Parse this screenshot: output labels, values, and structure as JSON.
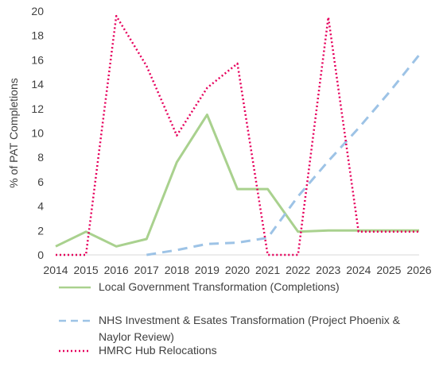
{
  "chart_data": {
    "type": "line",
    "title": "",
    "xlabel": "",
    "ylabel": "% of PAT Completions",
    "ylim": [
      0,
      20
    ],
    "yticks": [
      0,
      2,
      4,
      6,
      8,
      10,
      12,
      14,
      16,
      18,
      20
    ],
    "x": [
      "2014",
      "2015",
      "2016",
      "2017",
      "2018",
      "2019",
      "2020",
      "2021",
      "2022",
      "2023",
      "2024",
      "2025",
      "2026"
    ],
    "grid": false,
    "legend_position": "bottom",
    "series": [
      {
        "name": "Local Government Transformation (Completions)",
        "color": "#a9d18e",
        "style": "solid",
        "values": [
          0.7,
          1.9,
          0.7,
          1.3,
          7.6,
          11.5,
          5.4,
          5.4,
          1.9,
          2.0,
          2.0,
          2.0,
          2.0
        ]
      },
      {
        "name": "NHS Investment & Esates Transformation (Project Phoenix & Naylor Review)",
        "color": "#9dc3e6",
        "style": "dashed",
        "values": [
          null,
          null,
          null,
          0.0,
          0.4,
          0.9,
          1.0,
          1.4,
          4.8,
          7.7,
          10.4,
          13.3,
          16.4
        ]
      },
      {
        "name": "HMRC Hub Relocations",
        "color": "#e6005c",
        "style": "dotted",
        "values": [
          0.0,
          0.0,
          19.6,
          15.5,
          9.8,
          13.7,
          15.7,
          0.0,
          0.0,
          19.5,
          1.9,
          1.9,
          1.9
        ]
      }
    ]
  }
}
